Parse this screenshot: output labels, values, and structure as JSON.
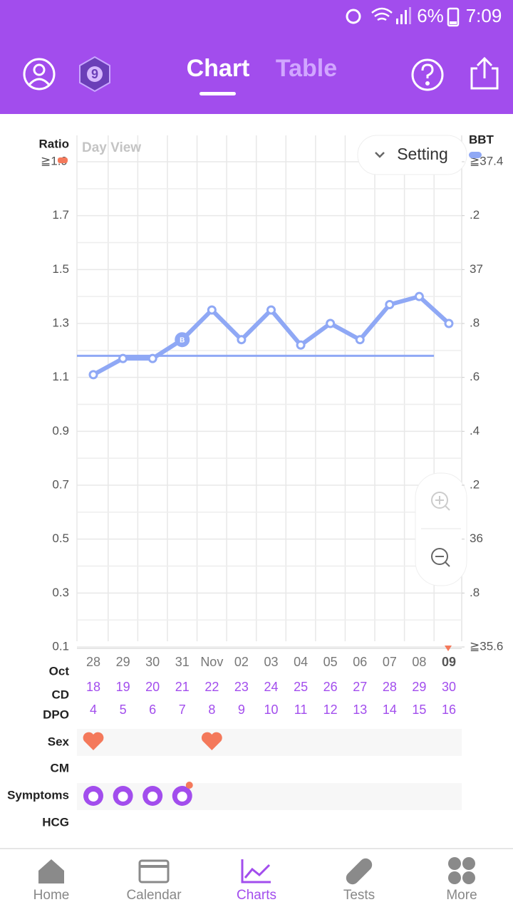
{
  "status_bar": {
    "battery": "6%",
    "time": "7:09"
  },
  "header": {
    "badge": "9",
    "tabs": [
      "Chart",
      "Table"
    ]
  },
  "chart_data": {
    "type": "line",
    "view_label": "Day View",
    "setting": "Setting",
    "y_label": "Ratio",
    "y2_label": "BBT",
    "ratio_color": "#f4795b",
    "ylim": [
      0.1,
      1.9
    ],
    "yticks": [
      {
        "value": 1.9,
        "label": "≧1.9"
      },
      1.7,
      1.5,
      1.3,
      1.1,
      0.9,
      0.7,
      0.5,
      0.3,
      0.1
    ],
    "y2lim": [
      35.6,
      37.4
    ],
    "y2ticks": [
      {
        "value": 37.4,
        "label": "≧37.4"
      },
      {
        "value": 37.2,
        "label": ".2"
      },
      37,
      {
        "value": 36.8,
        "label": ".8"
      },
      {
        "value": 36.6,
        "label": ".6"
      },
      {
        "value": 36.4,
        "label": ".4"
      },
      {
        "value": 36.2,
        "label": ".2"
      },
      36,
      {
        "value": 35.8,
        "label": ".8"
      },
      {
        "value": 35.6,
        "label": "≧35.6"
      }
    ],
    "categories": [
      "28",
      "29",
      "30",
      "31",
      "Nov",
      "02",
      "03",
      "04",
      "05",
      "06",
      "07",
      "08",
      "09"
    ],
    "month_label": "Oct",
    "series": [
      {
        "color": "#8fa8f5",
        "axis": "y2",
        "values": [
          36.61,
          36.67,
          36.67,
          36.74,
          36.85,
          36.74,
          36.85,
          36.72,
          36.8,
          36.74,
          36.87,
          36.9,
          36.8
        ],
        "point_labels": [
          null,
          null,
          null,
          "B",
          null,
          null,
          null,
          null,
          null,
          null,
          null,
          null,
          null
        ]
      }
    ],
    "coverline": 36.68
  },
  "rows": {
    "cd_label": "CD",
    "cd": [
      18,
      19,
      20,
      21,
      22,
      23,
      24,
      25,
      26,
      27,
      28,
      29,
      30
    ],
    "dpo_label": "DPO",
    "dpo": [
      4,
      5,
      6,
      7,
      8,
      9,
      10,
      11,
      12,
      13,
      14,
      15,
      16
    ],
    "sex_label": "Sex",
    "cm_label": "CM",
    "symptoms_label": "Symptoms",
    "hcg_label": "HCG"
  },
  "nav": [
    "Home",
    "Calendar",
    "Charts",
    "Tests",
    "More"
  ]
}
